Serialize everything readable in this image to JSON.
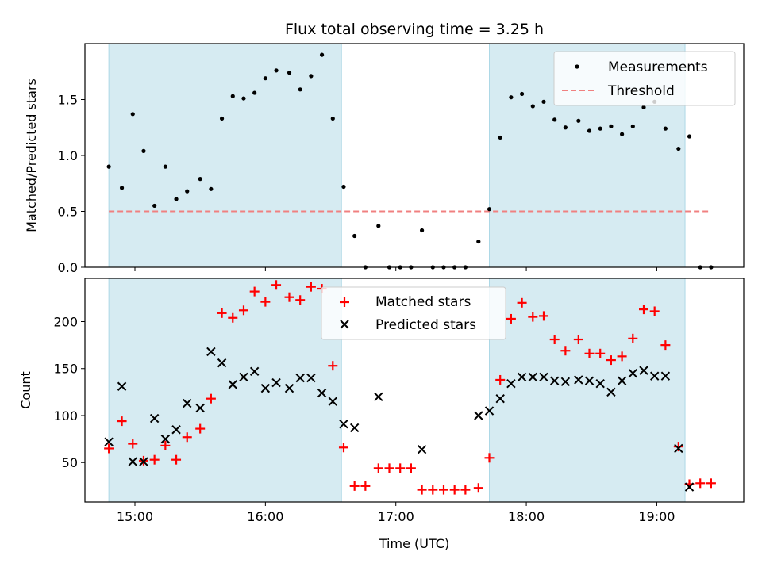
{
  "figure": {
    "title": "Flux total observing time = 3.25 h"
  },
  "colors": {
    "shade": "#add8e6",
    "measurement": "#000000",
    "threshold": "#f08080",
    "matched": "#ff0000",
    "predicted": "#000000"
  },
  "chart_data": [
    {
      "type": "scatter",
      "panel": "top",
      "ylabel": "Matched/Predicted stars",
      "xlabel": "",
      "xlim": [
        "14:37",
        "19:40"
      ],
      "ylim": [
        0,
        2.0
      ],
      "yticks": [
        "0.0",
        "0.5",
        "1.0",
        "1.5"
      ],
      "shaded_intervals": [
        [
          "14:48",
          "16:35"
        ],
        [
          "17:43",
          "19:13"
        ]
      ],
      "threshold": {
        "label": "Threshold",
        "value": 0.5,
        "x_range": [
          "14:48",
          "19:24"
        ],
        "style": "dashed"
      },
      "legend": {
        "placement": "upper right",
        "entries": [
          "Measurements",
          "Threshold"
        ]
      },
      "series": [
        {
          "name": "Measurements",
          "marker": "dot",
          "points": [
            [
              "14:48",
              0.9
            ],
            [
              "14:54",
              0.71
            ],
            [
              "14:59",
              1.37
            ],
            [
              "15:04",
              1.04
            ],
            [
              "15:09",
              0.55
            ],
            [
              "15:14",
              0.9
            ],
            [
              "15:19",
              0.61
            ],
            [
              "15:24",
              0.68
            ],
            [
              "15:30",
              0.79
            ],
            [
              "15:35",
              0.7
            ],
            [
              "15:40",
              1.33
            ],
            [
              "15:45",
              1.53
            ],
            [
              "15:50",
              1.51
            ],
            [
              "15:55",
              1.56
            ],
            [
              "16:00",
              1.69
            ],
            [
              "16:05",
              1.76
            ],
            [
              "16:11",
              1.74
            ],
            [
              "16:16",
              1.59
            ],
            [
              "16:21",
              1.71
            ],
            [
              "16:26",
              1.9
            ],
            [
              "16:31",
              1.33
            ],
            [
              "16:36",
              0.72
            ],
            [
              "16:41",
              0.28
            ],
            [
              "16:46",
              0.0
            ],
            [
              "16:52",
              0.37
            ],
            [
              "16:57",
              0.0
            ],
            [
              "17:02",
              0.0
            ],
            [
              "17:07",
              0.0
            ],
            [
              "17:12",
              0.33
            ],
            [
              "17:17",
              0.0
            ],
            [
              "17:22",
              0.0
            ],
            [
              "17:27",
              0.0
            ],
            [
              "17:32",
              0.0
            ],
            [
              "17:38",
              0.23
            ],
            [
              "17:43",
              0.52
            ],
            [
              "17:48",
              1.16
            ],
            [
              "17:53",
              1.52
            ],
            [
              "17:58",
              1.55
            ],
            [
              "18:03",
              1.44
            ],
            [
              "18:08",
              1.48
            ],
            [
              "18:13",
              1.32
            ],
            [
              "18:18",
              1.25
            ],
            [
              "18:24",
              1.31
            ],
            [
              "18:29",
              1.22
            ],
            [
              "18:34",
              1.24
            ],
            [
              "18:39",
              1.26
            ],
            [
              "18:44",
              1.19
            ],
            [
              "18:49",
              1.26
            ],
            [
              "18:54",
              1.43
            ],
            [
              "18:59",
              1.48
            ],
            [
              "19:04",
              1.24
            ],
            [
              "19:10",
              1.06
            ],
            [
              "19:15",
              1.17
            ],
            [
              "19:20",
              0.0
            ],
            [
              "19:25",
              0.0
            ]
          ]
        }
      ]
    },
    {
      "type": "scatter",
      "panel": "bottom",
      "ylabel": "Count",
      "xlabel": "Time (UTC)",
      "xlim": [
        "14:37",
        "19:40"
      ],
      "ylim": [
        8,
        246
      ],
      "yticks": [
        "50",
        "100",
        "150",
        "200"
      ],
      "xticks": [
        "15:00",
        "16:00",
        "17:00",
        "18:00",
        "19:00"
      ],
      "shaded_intervals": [
        [
          "14:48",
          "16:35"
        ],
        [
          "17:43",
          "19:13"
        ]
      ],
      "legend": {
        "placement": "upper center",
        "entries": [
          "Matched stars",
          "Predicted stars"
        ]
      },
      "series": [
        {
          "name": "Matched stars",
          "marker": "plus",
          "points": [
            [
              "14:48",
              65
            ],
            [
              "14:54",
              94
            ],
            [
              "14:59",
              70
            ],
            [
              "15:04",
              52
            ],
            [
              "15:09",
              53
            ],
            [
              "15:14",
              68
            ],
            [
              "15:19",
              53
            ],
            [
              "15:24",
              77
            ],
            [
              "15:30",
              86
            ],
            [
              "15:35",
              118
            ],
            [
              "15:40",
              209
            ],
            [
              "15:45",
              204
            ],
            [
              "15:50",
              212
            ],
            [
              "15:55",
              232
            ],
            [
              "16:00",
              221
            ],
            [
              "16:05",
              239
            ],
            [
              "16:11",
              226
            ],
            [
              "16:16",
              223
            ],
            [
              "16:21",
              237
            ],
            [
              "16:26",
              235
            ],
            [
              "16:31",
              153
            ],
            [
              "16:36",
              66
            ],
            [
              "16:41",
              25
            ],
            [
              "16:46",
              25
            ],
            [
              "16:52",
              44
            ],
            [
              "16:57",
              44
            ],
            [
              "17:02",
              44
            ],
            [
              "17:07",
              44
            ],
            [
              "17:12",
              21
            ],
            [
              "17:17",
              21
            ],
            [
              "17:22",
              21
            ],
            [
              "17:27",
              21
            ],
            [
              "17:32",
              21
            ],
            [
              "17:38",
              23
            ],
            [
              "17:43",
              55
            ],
            [
              "17:48",
              138
            ],
            [
              "17:53",
              203
            ],
            [
              "17:58",
              220
            ],
            [
              "18:03",
              205
            ],
            [
              "18:08",
              206
            ],
            [
              "18:13",
              181
            ],
            [
              "18:18",
              169
            ],
            [
              "18:24",
              181
            ],
            [
              "18:29",
              166
            ],
            [
              "18:34",
              166
            ],
            [
              "18:39",
              159
            ],
            [
              "18:44",
              163
            ],
            [
              "18:49",
              182
            ],
            [
              "18:54",
              213
            ],
            [
              "18:59",
              211
            ],
            [
              "19:04",
              175
            ],
            [
              "19:10",
              67
            ],
            [
              "19:15",
              27
            ],
            [
              "19:20",
              28
            ],
            [
              "19:25",
              28
            ]
          ]
        },
        {
          "name": "Predicted stars",
          "marker": "x",
          "points": [
            [
              "14:48",
              72
            ],
            [
              "14:54",
              131
            ],
            [
              "14:59",
              51
            ],
            [
              "15:04",
              51
            ],
            [
              "15:09",
              97
            ],
            [
              "15:14",
              75
            ],
            [
              "15:19",
              85
            ],
            [
              "15:24",
              113
            ],
            [
              "15:30",
              108
            ],
            [
              "15:35",
              168
            ],
            [
              "15:40",
              156
            ],
            [
              "15:45",
              133
            ],
            [
              "15:50",
              141
            ],
            [
              "15:55",
              147
            ],
            [
              "16:00",
              129
            ],
            [
              "16:05",
              135
            ],
            [
              "16:11",
              129
            ],
            [
              "16:16",
              140
            ],
            [
              "16:21",
              140
            ],
            [
              "16:26",
              124
            ],
            [
              "16:31",
              115
            ],
            [
              "16:36",
              91
            ],
            [
              "16:41",
              87
            ],
            [
              "16:52",
              120
            ],
            [
              "17:12",
              64
            ],
            [
              "17:38",
              100
            ],
            [
              "17:43",
              105
            ],
            [
              "17:48",
              118
            ],
            [
              "17:53",
              134
            ],
            [
              "17:58",
              141
            ],
            [
              "18:03",
              141
            ],
            [
              "18:08",
              141
            ],
            [
              "18:13",
              137
            ],
            [
              "18:18",
              136
            ],
            [
              "18:24",
              138
            ],
            [
              "18:29",
              137
            ],
            [
              "18:34",
              134
            ],
            [
              "18:39",
              125
            ],
            [
              "18:44",
              137
            ],
            [
              "18:49",
              145
            ],
            [
              "18:54",
              148
            ],
            [
              "18:59",
              142
            ],
            [
              "19:04",
              142
            ],
            [
              "19:10",
              65
            ],
            [
              "19:15",
              24
            ]
          ]
        }
      ]
    }
  ]
}
